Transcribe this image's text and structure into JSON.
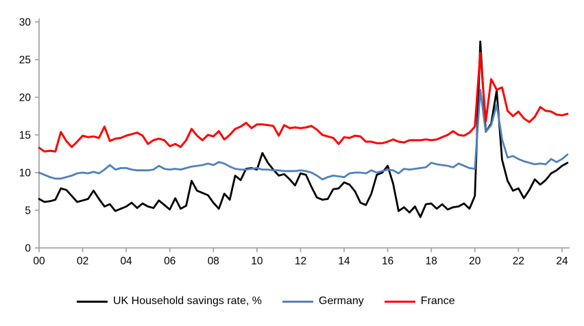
{
  "chart_data": {
    "type": "line",
    "title": "",
    "x_axis": {
      "tick_labels": [
        "00",
        "02",
        "04",
        "06",
        "08",
        "10",
        "12",
        "14",
        "16",
        "18",
        "20",
        "22",
        "24"
      ],
      "tick_years": [
        0,
        2,
        4,
        6,
        8,
        10,
        12,
        14,
        16,
        18,
        20,
        22,
        24
      ],
      "start_year": 2000,
      "points_per_year": 4,
      "xlim_years": [
        0,
        24.35
      ]
    },
    "y_axis": {
      "ticks": [
        0,
        5,
        10,
        15,
        20,
        25,
        30
      ],
      "ylim": [
        0,
        30
      ]
    },
    "grid": false,
    "legend_position": "bottom",
    "axis_color": "#a6a6a6",
    "series": [
      {
        "name": "UK Household savings rate, %",
        "color": "#000000",
        "stroke_width": 2.8,
        "values": [
          6.5,
          6.1,
          6.2,
          6.4,
          7.9,
          7.7,
          6.9,
          6.1,
          6.3,
          6.5,
          7.6,
          6.5,
          5.5,
          5.8,
          4.9,
          5.2,
          5.5,
          6.0,
          5.3,
          5.9,
          5.5,
          5.3,
          6.3,
          5.7,
          5.1,
          6.6,
          5.2,
          5.6,
          8.9,
          7.6,
          7.3,
          7.0,
          6.0,
          5.2,
          7.2,
          6.4,
          9.6,
          9.0,
          10.5,
          10.6,
          10.4,
          12.6,
          11.3,
          10.4,
          9.6,
          9.8,
          9.1,
          8.3,
          9.9,
          9.7,
          8.1,
          6.7,
          6.4,
          6.5,
          7.8,
          7.9,
          8.7,
          8.4,
          7.5,
          6.0,
          5.7,
          7.2,
          9.7,
          10.0,
          10.9,
          8.5,
          4.9,
          5.4,
          4.7,
          5.5,
          4.1,
          5.8,
          5.9,
          5.2,
          5.8,
          5.1,
          5.4,
          5.5,
          5.9,
          5.2,
          6.9,
          27.4,
          15.4,
          16.5,
          20.9,
          11.7,
          8.9,
          7.6,
          7.9,
          6.6,
          7.7,
          9.1,
          8.4,
          9.0,
          9.9,
          10.3,
          10.9,
          11.3
        ]
      },
      {
        "name": "Germany",
        "color": "#4f81bd",
        "stroke_width": 2.8,
        "values": [
          10.0,
          9.7,
          9.4,
          9.2,
          9.2,
          9.4,
          9.6,
          9.9,
          10.0,
          9.9,
          10.1,
          9.9,
          10.4,
          11.0,
          10.4,
          10.6,
          10.6,
          10.4,
          10.3,
          10.3,
          10.3,
          10.4,
          10.9,
          10.5,
          10.4,
          10.5,
          10.4,
          10.6,
          10.8,
          10.9,
          11.0,
          11.2,
          11.0,
          11.4,
          11.2,
          10.8,
          10.5,
          10.4,
          10.4,
          10.5,
          10.6,
          10.4,
          10.4,
          10.3,
          10.3,
          10.2,
          10.2,
          10.2,
          10.3,
          10.2,
          10.0,
          9.6,
          9.1,
          9.4,
          9.6,
          9.5,
          9.4,
          9.9,
          10.0,
          10.0,
          9.9,
          10.3,
          10.0,
          10.2,
          10.4,
          10.3,
          9.9,
          10.5,
          10.4,
          10.5,
          10.6,
          10.7,
          11.3,
          11.1,
          11.0,
          10.9,
          10.7,
          11.2,
          10.9,
          10.6,
          10.5,
          21.0,
          15.4,
          16.3,
          19.0,
          14.4,
          12.0,
          12.2,
          11.8,
          11.5,
          11.3,
          11.1,
          11.2,
          11.1,
          11.8,
          11.4,
          11.8,
          12.4
        ]
      },
      {
        "name": "France",
        "color": "#ff0000",
        "stroke_width": 3.0,
        "values": [
          13.3,
          12.8,
          12.9,
          12.8,
          15.4,
          14.2,
          13.4,
          14.1,
          14.9,
          14.7,
          14.8,
          14.6,
          16.1,
          14.2,
          14.5,
          14.6,
          14.9,
          15.1,
          15.3,
          14.9,
          13.8,
          14.3,
          14.5,
          14.3,
          13.5,
          13.8,
          13.4,
          14.3,
          15.8,
          14.9,
          14.3,
          15.0,
          14.8,
          15.5,
          14.4,
          15.0,
          15.8,
          16.1,
          16.6,
          15.9,
          16.4,
          16.4,
          16.3,
          16.2,
          14.9,
          16.3,
          15.9,
          16.0,
          15.9,
          16.0,
          16.2,
          15.7,
          15.0,
          14.8,
          14.6,
          13.8,
          14.7,
          14.6,
          14.9,
          14.8,
          14.1,
          14.1,
          13.9,
          13.9,
          14.1,
          14.4,
          14.1,
          14.0,
          14.3,
          14.3,
          14.3,
          14.4,
          14.3,
          14.4,
          14.7,
          15.0,
          15.5,
          15.0,
          14.9,
          15.3,
          16.1,
          25.9,
          16.8,
          22.4,
          21.0,
          21.3,
          18.2,
          17.5,
          18.1,
          17.2,
          16.7,
          17.4,
          18.7,
          18.2,
          18.1,
          17.7,
          17.6,
          17.8
        ]
      }
    ]
  }
}
